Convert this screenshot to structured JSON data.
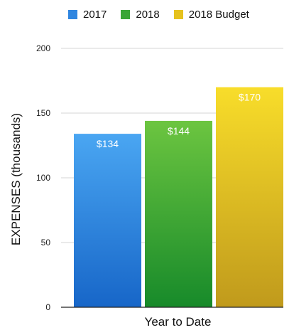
{
  "chart_data": {
    "type": "bar",
    "categories": [
      "Year to Date"
    ],
    "series": [
      {
        "name": "2017",
        "values": [
          134
        ],
        "label": "$134",
        "color_top": "#4aa6f2",
        "color_bottom": "#1766c8",
        "legend_color": "#2f86e0"
      },
      {
        "name": "2018",
        "values": [
          144
        ],
        "label": "$144",
        "color_top": "#6cc540",
        "color_bottom": "#178a2a",
        "legend_color": "#3aa536"
      },
      {
        "name": "2018 Budget",
        "values": [
          170
        ],
        "label": "$170",
        "color_top": "#f8dd2a",
        "color_bottom": "#c09a1c",
        "legend_color": "#e6c21e"
      }
    ],
    "xlabel": "Year to Date",
    "ylabel": "EXPENSES (thousands)",
    "ylim": [
      0,
      200
    ],
    "yticks": [
      0,
      50,
      100,
      150,
      200
    ],
    "grid": true,
    "legend_position": "top"
  }
}
